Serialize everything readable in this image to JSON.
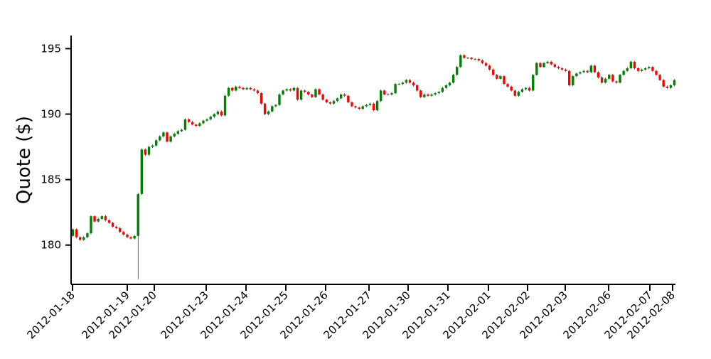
{
  "chart_data": {
    "type": "candlestick",
    "title": "",
    "ylabel": "Quote ($)",
    "xlabel": "",
    "ylim": [
      177,
      196
    ],
    "yticks": [
      180,
      185,
      190,
      195
    ],
    "grid": false,
    "up_color": "#008000",
    "down_color": "#ff0000",
    "x_tick_labels": [
      "2012-01-18",
      "2012-01-19",
      "2012-01-20",
      "2012-01-23",
      "2012-01-24",
      "2012-01-25",
      "2012-01-26",
      "2012-01-27",
      "2012-01-30",
      "2012-01-31",
      "2012-02-01",
      "2012-02-02",
      "2012-02-03",
      "2012-02-06",
      "2012-02-07",
      "2012-02-08"
    ],
    "closes": [
      181.2,
      180.6,
      180.4,
      180.6,
      180.9,
      182.2,
      181.8,
      182.0,
      182.2,
      181.9,
      181.7,
      181.4,
      181.3,
      181.0,
      180.8,
      180.6,
      180.5,
      180.7,
      183.9,
      187.3,
      186.9,
      187.5,
      187.6,
      188.0,
      188.3,
      188.6,
      187.9,
      188.3,
      188.5,
      188.7,
      188.8,
      189.6,
      189.4,
      189.2,
      189.1,
      189.3,
      189.5,
      189.6,
      189.8,
      190.0,
      190.2,
      189.9,
      191.4,
      192.0,
      191.8,
      192.1,
      192.0,
      191.9,
      192.0,
      191.9,
      191.8,
      191.6,
      190.8,
      190.0,
      190.2,
      190.6,
      190.7,
      191.5,
      191.8,
      191.9,
      191.8,
      192.0,
      191.1,
      191.8,
      191.7,
      191.5,
      191.3,
      191.9,
      191.5,
      191.1,
      190.9,
      190.8,
      191.0,
      191.2,
      191.5,
      191.4,
      190.9,
      190.6,
      190.5,
      190.4,
      190.6,
      190.7,
      190.8,
      190.3,
      191.0,
      191.8,
      191.5,
      191.5,
      191.6,
      192.3,
      192.3,
      192.4,
      192.6,
      192.4,
      192.2,
      191.8,
      191.3,
      191.5,
      191.4,
      191.5,
      191.6,
      191.7,
      192.0,
      192.2,
      192.4,
      193.0,
      193.6,
      194.5,
      194.3,
      194.3,
      194.2,
      194.2,
      194.1,
      193.9,
      193.7,
      193.4,
      193.0,
      192.7,
      192.9,
      192.3,
      192.1,
      191.8,
      191.4,
      191.7,
      191.9,
      192.0,
      191.8,
      193.0,
      193.9,
      193.6,
      193.9,
      194.0,
      193.8,
      193.6,
      193.5,
      193.4,
      193.3,
      192.2,
      192.9,
      193.1,
      193.2,
      193.3,
      193.2,
      193.7,
      193.2,
      192.8,
      192.4,
      192.7,
      193.0,
      192.5,
      192.4,
      193.0,
      193.3,
      193.5,
      194.0,
      193.5,
      193.3,
      193.4,
      193.5,
      193.6,
      193.3,
      193.0,
      192.6,
      192.1,
      192.0,
      192.2,
      192.6
    ]
  }
}
